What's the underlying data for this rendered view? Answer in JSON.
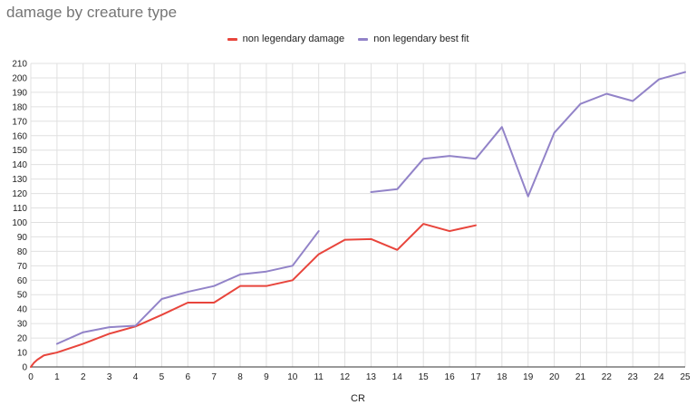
{
  "chart_data": {
    "type": "line",
    "title": "damage by creature type",
    "xlabel": "CR",
    "ylabel": "",
    "xlim": [
      0,
      25
    ],
    "ylim": [
      0,
      210
    ],
    "x_ticks": [
      0,
      1,
      2,
      3,
      4,
      5,
      6,
      7,
      8,
      9,
      10,
      11,
      12,
      13,
      14,
      15,
      16,
      17,
      18,
      19,
      20,
      21,
      22,
      23,
      24,
      25
    ],
    "y_ticks": [
      0,
      10,
      20,
      30,
      40,
      50,
      60,
      70,
      80,
      90,
      100,
      110,
      120,
      130,
      140,
      150,
      160,
      170,
      180,
      190,
      200,
      210
    ],
    "grid": true,
    "legend_position": "top",
    "series": [
      {
        "name": "non legendary damage",
        "color": "#e8453c",
        "segments": [
          [
            [
              0,
              0
            ],
            [
              0.125,
              3
            ],
            [
              0.25,
              5
            ],
            [
              0.5,
              8
            ],
            [
              1,
              10
            ],
            [
              2,
              16
            ],
            [
              3,
              23
            ],
            [
              4,
              28
            ],
            [
              5,
              36
            ],
            [
              6,
              44.5
            ],
            [
              7,
              44.5
            ],
            [
              8,
              56
            ],
            [
              9,
              56
            ],
            [
              10,
              60
            ],
            [
              11,
              78
            ],
            [
              12,
              88
            ],
            [
              13,
              88.5
            ],
            [
              14,
              81
            ],
            [
              15,
              99
            ],
            [
              16,
              94
            ],
            [
              17,
              98
            ]
          ]
        ]
      },
      {
        "name": "non legendary best fit",
        "color": "#9283c8",
        "segments": [
          [
            [
              1,
              16
            ],
            [
              2,
              24
            ],
            [
              3,
              27.5
            ],
            [
              4,
              28.5
            ],
            [
              5,
              47
            ],
            [
              6,
              52
            ],
            [
              7,
              56
            ],
            [
              8,
              64
            ],
            [
              9,
              66
            ],
            [
              10,
              70
            ],
            [
              11,
              94
            ]
          ],
          [
            [
              13,
              121
            ],
            [
              14,
              123
            ],
            [
              15,
              144
            ],
            [
              16,
              146
            ],
            [
              17,
              144
            ],
            [
              18,
              166
            ],
            [
              19,
              118
            ],
            [
              20,
              162
            ],
            [
              21,
              182
            ],
            [
              22,
              189
            ],
            [
              23,
              184
            ],
            [
              24,
              199
            ],
            [
              25,
              204
            ]
          ]
        ]
      }
    ]
  }
}
